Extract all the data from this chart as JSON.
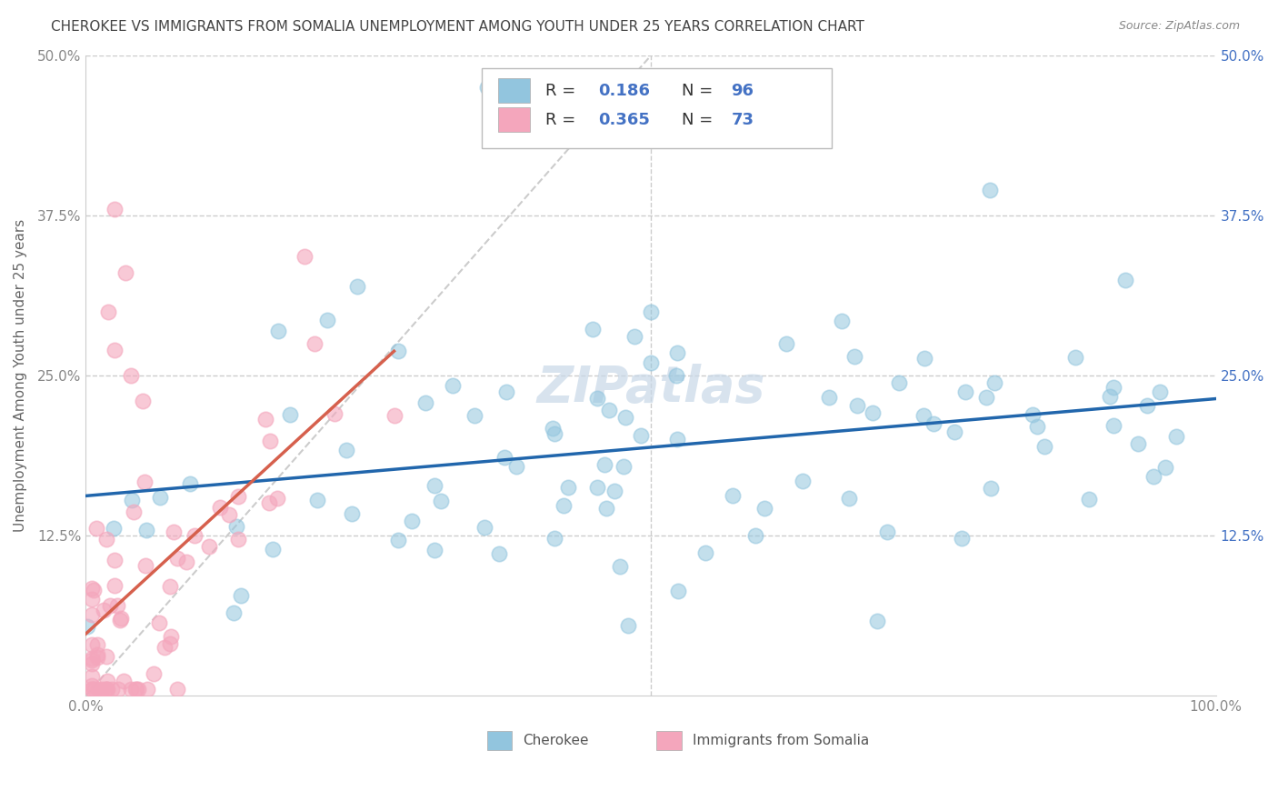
{
  "title": "CHEROKEE VS IMMIGRANTS FROM SOMALIA UNEMPLOYMENT AMONG YOUTH UNDER 25 YEARS CORRELATION CHART",
  "source": "Source: ZipAtlas.com",
  "ylabel": "Unemployment Among Youth under 25 years",
  "xlim": [
    0,
    1.0
  ],
  "ylim": [
    0,
    0.5
  ],
  "blue_color": "#92c5de",
  "pink_color": "#f4a6bc",
  "blue_line_color": "#2166ac",
  "pink_line_color": "#d6604d",
  "diagonal_color": "#cccccc",
  "watermark": "ZIPatlas",
  "right_tick_color": "#4472c4",
  "left_tick_color": "#888888",
  "title_fontsize": 11,
  "source_fontsize": 9,
  "label_fontsize": 11,
  "tick_fontsize": 11,
  "legend_fontsize": 13,
  "watermark_fontsize": 40,
  "legend_val_color": "#4472c4",
  "legend_label_color": "#333333"
}
